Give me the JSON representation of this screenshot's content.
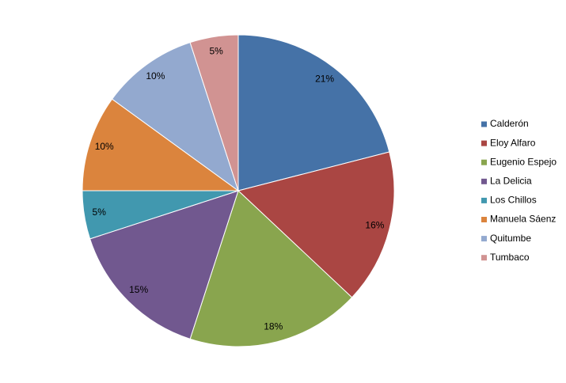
{
  "chart_data": {
    "type": "pie",
    "categories": [
      "Calderón",
      "Eloy Alfaro",
      "Eugenio Espejo",
      "La Delicia",
      "Los Chillos",
      "Manuela Sáenz",
      "Quitumbe",
      "Tumbaco"
    ],
    "values": [
      21,
      16,
      18,
      15,
      5,
      10,
      10,
      5
    ],
    "value_labels": [
      "21%",
      "16%",
      "18%",
      "15%",
      "5%",
      "10%",
      "10%",
      "5%"
    ],
    "colors": [
      "#4572a7",
      "#aa4643",
      "#89a54e",
      "#71588f",
      "#4198af",
      "#db843d",
      "#93a9cf",
      "#d19392"
    ],
    "legend": "right"
  }
}
